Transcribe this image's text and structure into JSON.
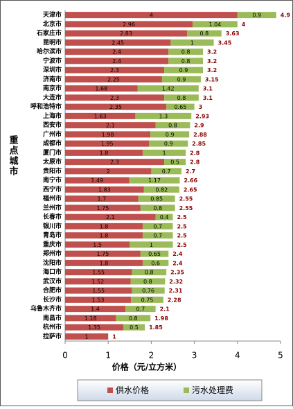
{
  "chart_data": {
    "type": "stacked-barh",
    "categories": [
      "天津市",
      "北京市",
      "石家庄市",
      "昆明市",
      "哈尔滨市",
      "宁波市",
      "深圳市",
      "济南市",
      "南京市",
      "大连市",
      "呼和浩特市",
      "上海市",
      "西安市",
      "广州市",
      "成都市",
      "厦门市",
      "太原市",
      "贵阳市",
      "南宁市",
      "西宁市",
      "福州市",
      "兰州市",
      "长春市",
      "银川市",
      "青岛市",
      "重庆市",
      "郑州市",
      "沈阳市",
      "海口市",
      "武汉市",
      "合肥市",
      "长沙市",
      "乌鲁木齐市",
      "南昌市",
      "杭州市",
      "拉萨市"
    ],
    "series": [
      {
        "name": "供水价格",
        "color": "#c0504d",
        "values": [
          4,
          2.96,
          2.83,
          2.45,
          2.4,
          2.4,
          2.3,
          2.25,
          1.68,
          2.3,
          2.35,
          1.63,
          2.1,
          1.98,
          1.95,
          1.8,
          2.3,
          2,
          1.49,
          1.83,
          1.7,
          1.75,
          2.1,
          1.8,
          1.8,
          1.5,
          1.75,
          1.8,
          1.55,
          1.52,
          1.55,
          1.53,
          1.4,
          1.18,
          1.35,
          1
        ]
      },
      {
        "name": "污水处理费",
        "color": "#9bbb59",
        "values": [
          0.9,
          1.04,
          0.8,
          1,
          0.8,
          0.8,
          0.9,
          0.9,
          1.42,
          0.8,
          0.65,
          1.3,
          0.8,
          0.9,
          0.9,
          1,
          0.5,
          0.7,
          1.17,
          0.82,
          0.85,
          0.8,
          0.4,
          0.7,
          0.7,
          1,
          0.65,
          0.6,
          0.8,
          0.8,
          0.76,
          0.75,
          0.7,
          0.8,
          0.5,
          null
        ]
      }
    ],
    "totals": [
      4.9,
      4,
      3.63,
      3.45,
      3.2,
      3.2,
      3.2,
      3.15,
      3.1,
      3.1,
      3,
      2.93,
      2.9,
      2.88,
      2.85,
      2.8,
      2.8,
      2.7,
      2.66,
      2.65,
      2.55,
      2.55,
      2.5,
      2.5,
      2.5,
      2.5,
      2.4,
      2.4,
      2.35,
      2.32,
      2.31,
      2.28,
      2.1,
      1.98,
      1.85,
      1
    ],
    "xlabel": "价格（元/立方米）",
    "ylabel": "重点城市",
    "xlim": [
      0,
      5
    ],
    "xticks": [
      0,
      1,
      2,
      3,
      4,
      5
    ],
    "legend": "bottom"
  }
}
